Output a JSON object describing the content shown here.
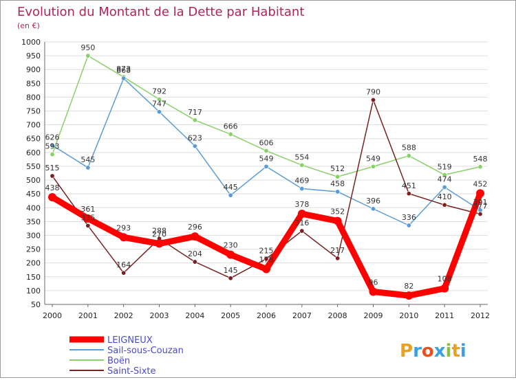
{
  "chart_data": {
    "type": "line",
    "title": "Evolution du Montant de la Dette par Habitant",
    "subtitle": "(en €)",
    "xlabel": "",
    "ylabel": "",
    "ylim": [
      50,
      1000
    ],
    "yticks": [
      50,
      100,
      150,
      200,
      250,
      300,
      350,
      400,
      450,
      500,
      550,
      600,
      650,
      700,
      750,
      800,
      850,
      900,
      950,
      1000
    ],
    "x": [
      "2000",
      "2001",
      "2002",
      "2003",
      "2004",
      "2005",
      "2006",
      "2007",
      "2008",
      "2009",
      "2010",
      "2011",
      "2012"
    ],
    "grid": "horizontal",
    "legend_position": "bottom-left",
    "series": [
      {
        "name": "Boën",
        "color": "#88d068",
        "width": "thin",
        "values": [
          593,
          950,
          873,
          792,
          717,
          666,
          606,
          554,
          512,
          549,
          588,
          519,
          548
        ]
      },
      {
        "name": "Sail-sous-Couzan",
        "color": "#5b9bd5",
        "width": "thin",
        "values": [
          626,
          545,
          868,
          747,
          623,
          445,
          549,
          469,
          458,
          396,
          336,
          474,
          391
        ]
      },
      {
        "name": "Saint-Sixte",
        "color": "#7a2020",
        "width": "thin",
        "values": [
          515,
          335,
          164,
          288,
          204,
          145,
          215,
          316,
          217,
          790,
          451,
          410,
          377
        ]
      },
      {
        "name": "LEIGNEUX",
        "color": "#ff0000",
        "width": "thick",
        "values": [
          438,
          361,
          293,
          270,
          296,
          230,
          178,
          378,
          352,
          96,
          82,
          108,
          452
        ]
      }
    ],
    "legend_order": [
      "LEIGNEUX",
      "Sail-sous-Couzan",
      "Boën",
      "Saint-Sixte"
    ]
  },
  "brand": {
    "text": "Proxiti"
  }
}
